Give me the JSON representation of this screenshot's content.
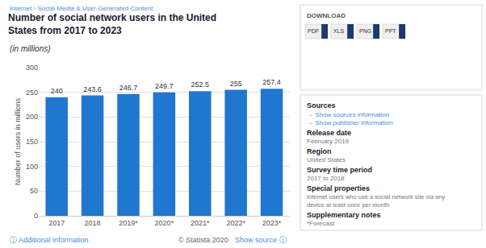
{
  "chart_data": {
    "type": "bar",
    "title": "Number of social network users in the United States from 2017 to 2023",
    "subtitle": "(in millions)",
    "ylabel": "Number of users in millions",
    "categories": [
      "2017",
      "2018",
      "2019*",
      "2020*",
      "2021*",
      "2022*",
      "2023*"
    ],
    "values": [
      240,
      243.6,
      246.7,
      249.7,
      252.5,
      255,
      257.4
    ],
    "color": "#1f77d0",
    "ylim": [
      0,
      300
    ],
    "yticks": [
      0,
      50,
      100,
      150,
      200,
      250,
      300
    ],
    "grid": true,
    "data_labels": true,
    "annotations": [
      "Internet › Social Media & User-Generated Content",
      "ⓘ Additional information",
      "© Statista 2020",
      "Show source ⓘ",
      "DOWNLOAD",
      "PDF",
      "XLS",
      "PNG",
      "PPT",
      "Sources",
      "→ Show sources information",
      "→ Show publisher information",
      "Release date",
      "February 2019",
      "Region",
      "United States",
      "Survey time period",
      "2017 to 2018",
      "Special properties",
      "Internet users who use a social network site via any",
      "device at least once per month",
      "Supplementary notes",
      "*Forecast"
    ]
  }
}
